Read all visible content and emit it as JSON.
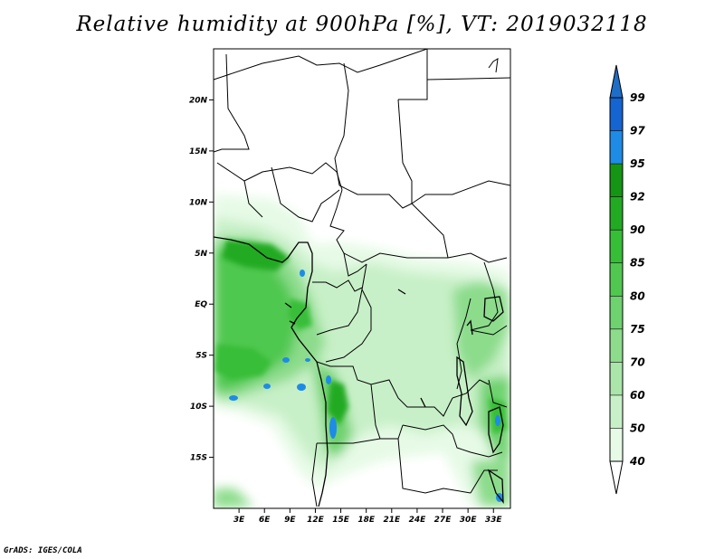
{
  "title": "Relative humidity at 900hPa [%], VT: 2019032118",
  "credit": "GrADS: IGES/COLA",
  "map": {
    "lat_range": [
      -20,
      25
    ],
    "lon_range": [
      0,
      35
    ],
    "lat_ticks": [
      {
        "value": 20,
        "label": "20N"
      },
      {
        "value": 15,
        "label": "15N"
      },
      {
        "value": 10,
        "label": "10N"
      },
      {
        "value": 5,
        "label": "5N"
      },
      {
        "value": 0,
        "label": "EQ"
      },
      {
        "value": -5,
        "label": "5S"
      },
      {
        "value": -10,
        "label": "10S"
      },
      {
        "value": -15,
        "label": "15S"
      }
    ],
    "lon_ticks": [
      {
        "value": 3,
        "label": "3E"
      },
      {
        "value": 6,
        "label": "6E"
      },
      {
        "value": 9,
        "label": "9E"
      },
      {
        "value": 12,
        "label": "12E"
      },
      {
        "value": 15,
        "label": "15E"
      },
      {
        "value": 18,
        "label": "18E"
      },
      {
        "value": 21,
        "label": "21E"
      },
      {
        "value": 24,
        "label": "24E"
      },
      {
        "value": 27,
        "label": "27E"
      },
      {
        "value": 30,
        "label": "30E"
      },
      {
        "value": 33,
        "label": "33E"
      }
    ]
  },
  "colorbar": {
    "levels": [
      {
        "label": "40",
        "color": "#e6fae6"
      },
      {
        "label": "50",
        "color": "#c8f0c8"
      },
      {
        "label": "60",
        "color": "#aae6aa"
      },
      {
        "label": "70",
        "color": "#8cdc8c"
      },
      {
        "label": "75",
        "color": "#6ed26e"
      },
      {
        "label": "80",
        "color": "#50c850"
      },
      {
        "label": "85",
        "color": "#37be37"
      },
      {
        "label": "90",
        "color": "#23aa23"
      },
      {
        "label": "92",
        "color": "#149614"
      },
      {
        "label": "95",
        "color": "#1e8ce6"
      },
      {
        "label": "97",
        "color": "#1464d2"
      },
      {
        "label": "99",
        "color": "#0a50be"
      }
    ],
    "below_color": "#ffffff",
    "above_color": "#1e6ec8"
  }
}
